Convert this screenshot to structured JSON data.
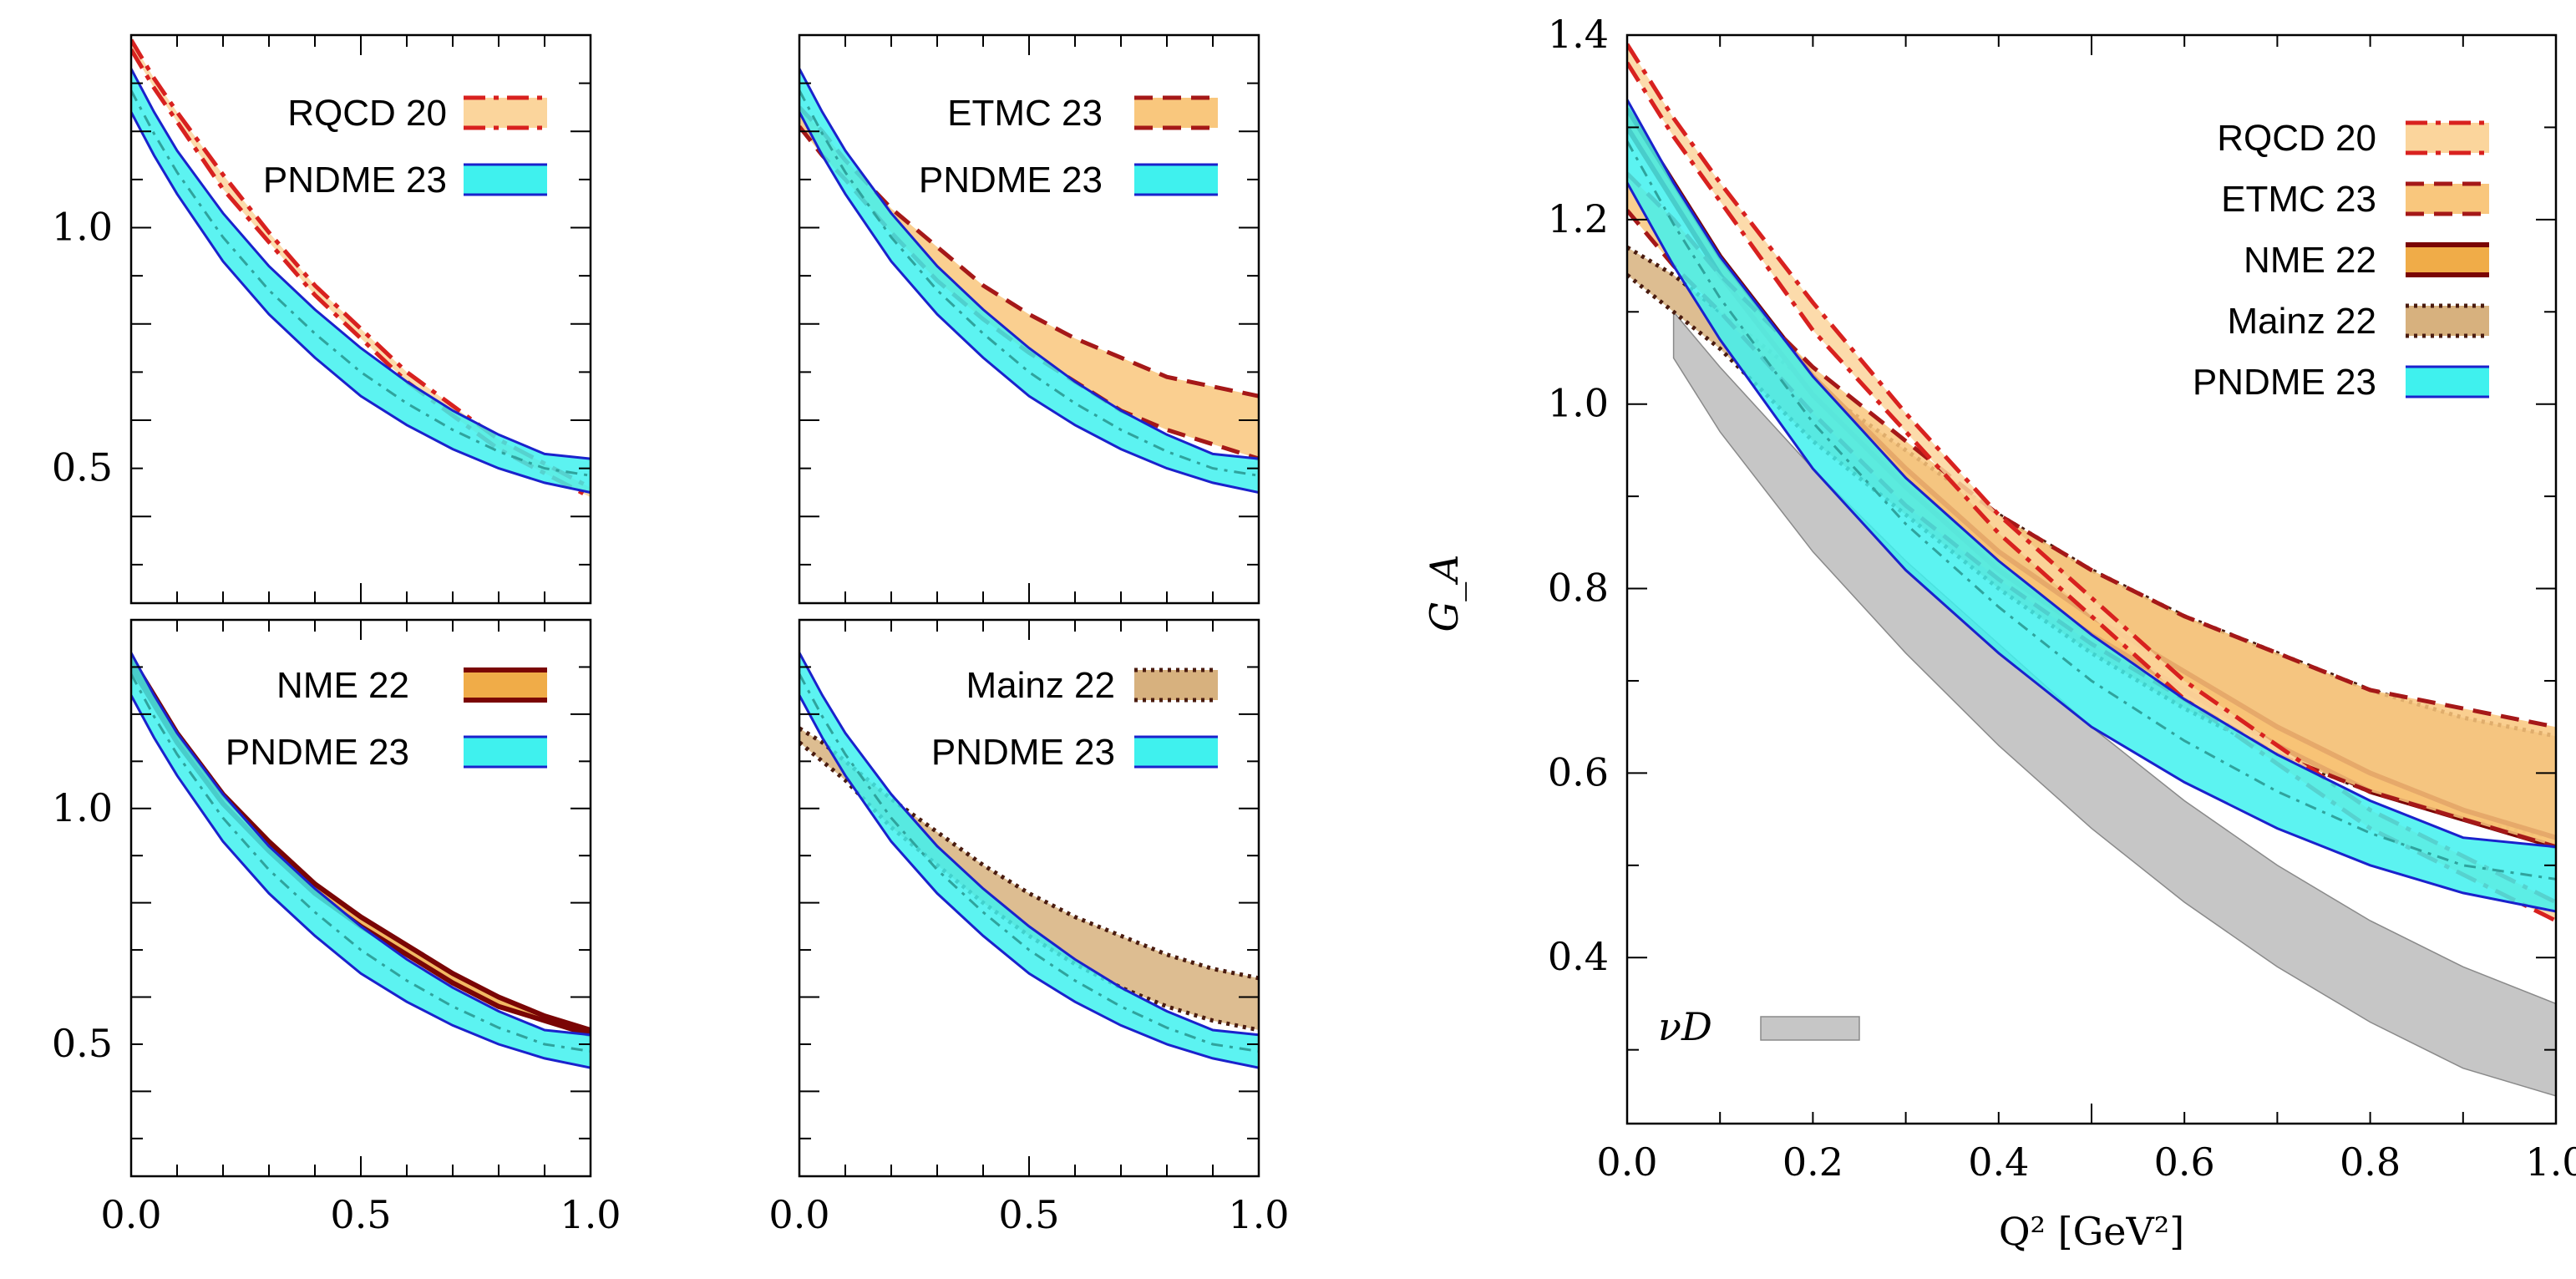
{
  "chart_data": {
    "type": "area",
    "description_free": true,
    "styles": {
      "RQCD 20": {
        "fill": "#fbd59c",
        "line": "#d8211f",
        "dash": "26,10,6,10",
        "width": 5
      },
      "ETMC 23": {
        "fill": "#f9c77d",
        "line": "#a51818",
        "dash": "22,12",
        "width": 5
      },
      "NME 22": {
        "fill": "#f0ac48",
        "line": "#7a0505",
        "dash": "",
        "width": 6
      },
      "Mainz 22": {
        "fill": "#d7b17e",
        "line": "#4a1c10",
        "dash": "4,6",
        "width": 5
      },
      "PNDME 23": {
        "fill": "#3ff1ee",
        "line": "#1a22cc",
        "dash": "",
        "width": 3,
        "center": "#2fa39d"
      },
      "nuD": {
        "fill": "#c6c6c6",
        "line": "#8a8a8a"
      }
    },
    "series": [
      {
        "name": "RQCD 20",
        "x": [
          0,
          0.05,
          0.1,
          0.2,
          0.3,
          0.4,
          0.5,
          0.6,
          0.7,
          0.8,
          0.9,
          1.0
        ],
        "upper": [
          1.39,
          1.31,
          1.24,
          1.11,
          0.99,
          0.88,
          0.79,
          0.7,
          0.63,
          0.56,
          0.51,
          0.46
        ],
        "lower": [
          1.37,
          1.29,
          1.22,
          1.08,
          0.97,
          0.86,
          0.77,
          0.68,
          0.61,
          0.54,
          0.49,
          0.44
        ]
      },
      {
        "name": "ETMC 23",
        "x": [
          0,
          0.05,
          0.1,
          0.2,
          0.3,
          0.4,
          0.5,
          0.6,
          0.7,
          0.8,
          0.9,
          1.0
        ],
        "upper": [
          1.25,
          1.2,
          1.14,
          1.04,
          0.96,
          0.88,
          0.82,
          0.77,
          0.73,
          0.69,
          0.67,
          0.65
        ],
        "lower": [
          1.21,
          1.15,
          1.1,
          0.99,
          0.89,
          0.81,
          0.74,
          0.68,
          0.62,
          0.58,
          0.55,
          0.52
        ]
      },
      {
        "name": "NME 22",
        "x": [
          0,
          0.05,
          0.1,
          0.2,
          0.3,
          0.4,
          0.5,
          0.6,
          0.7,
          0.8,
          0.9,
          1.0
        ],
        "upper": [
          1.32,
          1.24,
          1.16,
          1.03,
          0.93,
          0.84,
          0.77,
          0.71,
          0.65,
          0.6,
          0.56,
          0.53
        ],
        "lower": [
          1.3,
          1.22,
          1.14,
          1.01,
          0.91,
          0.82,
          0.75,
          0.69,
          0.63,
          0.58,
          0.55,
          0.52
        ]
      },
      {
        "name": "Mainz 22",
        "x": [
          0,
          0.05,
          0.1,
          0.2,
          0.3,
          0.4,
          0.5,
          0.6,
          0.7,
          0.8,
          0.9,
          1.0
        ],
        "upper": [
          1.17,
          1.14,
          1.1,
          1.02,
          0.95,
          0.88,
          0.82,
          0.77,
          0.73,
          0.69,
          0.66,
          0.64
        ],
        "lower": [
          1.14,
          1.1,
          1.06,
          0.96,
          0.88,
          0.8,
          0.73,
          0.67,
          0.62,
          0.58,
          0.55,
          0.53
        ]
      },
      {
        "name": "PNDME 23",
        "x": [
          0,
          0.05,
          0.1,
          0.2,
          0.3,
          0.4,
          0.5,
          0.6,
          0.7,
          0.8,
          0.9,
          1.0
        ],
        "upper": [
          1.33,
          1.24,
          1.16,
          1.03,
          0.92,
          0.83,
          0.75,
          0.68,
          0.62,
          0.57,
          0.53,
          0.52
        ],
        "lower": [
          1.24,
          1.15,
          1.07,
          0.93,
          0.82,
          0.73,
          0.65,
          0.59,
          0.54,
          0.5,
          0.47,
          0.45
        ]
      },
      {
        "name": "nuD",
        "x": [
          0.05,
          0.1,
          0.2,
          0.3,
          0.4,
          0.5,
          0.6,
          0.7,
          0.8,
          0.9,
          1.0
        ],
        "upper": [
          1.1,
          1.04,
          0.93,
          0.83,
          0.74,
          0.65,
          0.57,
          0.5,
          0.44,
          0.39,
          0.35
        ],
        "lower": [
          1.05,
          0.97,
          0.84,
          0.73,
          0.63,
          0.54,
          0.46,
          0.39,
          0.33,
          0.28,
          0.25
        ]
      }
    ],
    "panels": [
      {
        "id": "rqcd",
        "series": [
          "RQCD 20",
          "PNDME 23"
        ],
        "legend": [
          "RQCD 20",
          "PNDME 23"
        ],
        "xlim": [
          0,
          1
        ],
        "ylim": [
          0.22,
          1.4
        ],
        "yticks": [
          "1.0",
          "0.5"
        ],
        "xticks": []
      },
      {
        "id": "etmc",
        "series": [
          "ETMC 23",
          "PNDME 23"
        ],
        "legend": [
          "ETMC 23",
          "PNDME 23"
        ],
        "xlim": [
          0,
          1
        ],
        "ylim": [
          0.22,
          1.4
        ],
        "yticks": [],
        "xticks": []
      },
      {
        "id": "nme",
        "series": [
          "NME 22",
          "PNDME 23"
        ],
        "legend": [
          "NME 22",
          "PNDME 23"
        ],
        "xlim": [
          0,
          1
        ],
        "ylim": [
          0.22,
          1.4
        ],
        "yticks": [
          "1.0",
          "0.5"
        ],
        "xticks": [
          "0.0",
          "0.5",
          "1.0"
        ]
      },
      {
        "id": "mainz",
        "series": [
          "Mainz 22",
          "PNDME 23"
        ],
        "legend": [
          "Mainz 22",
          "PNDME 23"
        ],
        "xlim": [
          0,
          1
        ],
        "ylim": [
          0.22,
          1.4
        ],
        "yticks": [],
        "xticks": [
          "0.0",
          "0.5",
          "1.0"
        ]
      },
      {
        "id": "main",
        "series": [
          "nuD",
          "Mainz 22",
          "NME 22",
          "ETMC 23",
          "RQCD 20",
          "PNDME 23"
        ],
        "legend": [
          "RQCD 20",
          "ETMC 23",
          "NME 22",
          "Mainz 22",
          "PNDME 23"
        ],
        "xlim": [
          0,
          1
        ],
        "ylim": [
          0.22,
          1.4
        ],
        "yticks": [
          "1.4",
          "1.2",
          "1.0",
          "0.8",
          "0.6",
          "0.4"
        ],
        "xticks": [
          "0.0",
          "0.2",
          "0.4",
          "0.6",
          "0.8",
          "1.0"
        ],
        "ylabel": "G_A",
        "xlabel": "Q² [GeV²]",
        "extra_legend": "νD"
      }
    ]
  }
}
